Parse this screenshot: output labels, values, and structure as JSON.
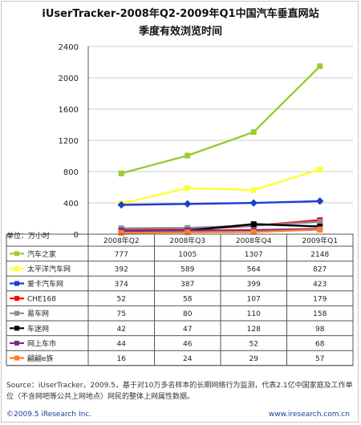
{
  "title_line1": "iUserTracker-2008年Q2-2009年Q1中国汽车垂直网站",
  "title_line2": "季度有效浏览时间",
  "unit_label": "单位：万小时",
  "source_text": "Source：iUserTracker，2009.5，基于对10万多名样本的长期网络行为监测，代表2.1亿中国家庭及工作单位（不含网吧等公共上网地点）网民的整体上网属性数据。",
  "footer_left": "©2009.5 iResearch Inc.",
  "footer_right": "www.iresearch.com.cn",
  "chart_data": {
    "type": "line",
    "title": "iUserTracker-2008年Q2-2009年Q1中国汽车垂直网站季度有效浏览时间",
    "ylabel": "单位：万小时",
    "categories": [
      "2008年Q2",
      "2008年Q3",
      "2008年Q4",
      "2009年Q1"
    ],
    "ylim": [
      0,
      2400
    ],
    "yticks": [
      0,
      400,
      800,
      1200,
      1600,
      2000,
      2400
    ],
    "legend": "table-below",
    "series": [
      {
        "name": "汽车之家",
        "color": "#99cc33",
        "marker": "square",
        "values": [
          777,
          1005,
          1307,
          2148
        ]
      },
      {
        "name": "太平洋汽车网",
        "color": "#ffff33",
        "marker": "square",
        "values": [
          392,
          589,
          564,
          827
        ]
      },
      {
        "name": "爱卡汽车网",
        "color": "#1f3ecc",
        "marker": "diamond",
        "values": [
          374,
          387,
          399,
          423
        ]
      },
      {
        "name": "CHE168",
        "color": "#ff0000",
        "marker": "square",
        "values": [
          52,
          58,
          107,
          179
        ]
      },
      {
        "name": "易车网",
        "color": "#8b8b9b",
        "marker": "square",
        "values": [
          75,
          80,
          110,
          158
        ]
      },
      {
        "name": "车迷网",
        "color": "#000000",
        "marker": "square",
        "values": [
          42,
          47,
          128,
          98
        ]
      },
      {
        "name": "网上车市",
        "color": "#7f2b8f",
        "marker": "square",
        "values": [
          44,
          46,
          52,
          68
        ]
      },
      {
        "name": "翩翩e族",
        "color": "#ff7f27",
        "marker": "square",
        "values": [
          16,
          24,
          29,
          57
        ]
      }
    ]
  }
}
